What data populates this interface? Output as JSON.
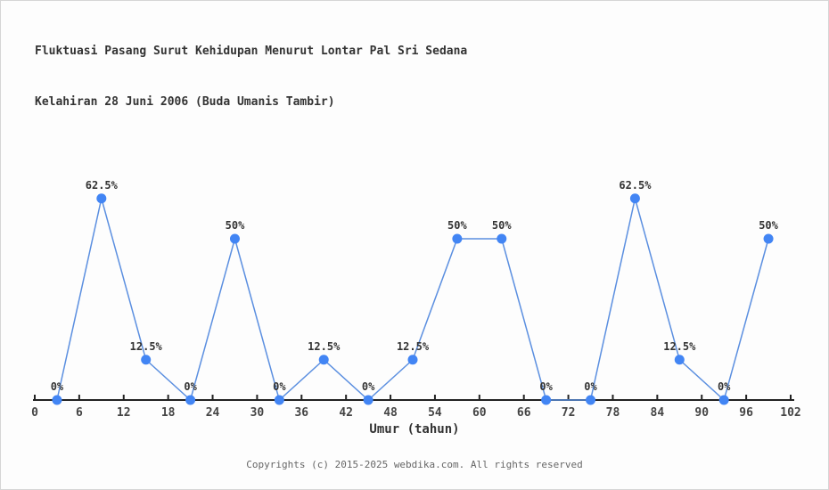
{
  "chart_data": {
    "type": "line",
    "title": "Fluktuasi Pasang Surut Kehidupan Menurut Lontar Pal Sri Sedana",
    "subtitle": "Kelahiran 28 Juni 2006 (Buda Umanis Tambir)",
    "xlabel": "Umur (tahun)",
    "x": [
      3,
      9,
      15,
      21,
      27,
      33,
      39,
      45,
      51,
      57,
      63,
      69,
      75,
      81,
      87,
      93,
      99
    ],
    "y": [
      0,
      62.5,
      12.5,
      0,
      50,
      0,
      12.5,
      0,
      12.5,
      50,
      50,
      0,
      0,
      62.5,
      12.5,
      0,
      50
    ],
    "point_labels": [
      "0%",
      "62.5%",
      "12.5%",
      "0%",
      "50%",
      "0%",
      "12.5%",
      "0%",
      "12.5%",
      "50%",
      "50%",
      "0%",
      "0%",
      "62.5%",
      "12.5%",
      "0%",
      "50%"
    ],
    "xticks": [
      0,
      6,
      12,
      18,
      24,
      30,
      36,
      42,
      48,
      54,
      60,
      66,
      72,
      78,
      84,
      90,
      96,
      102
    ],
    "xlim": [
      0,
      102
    ],
    "ylim": [
      0,
      100
    ],
    "grid": false,
    "legend": null,
    "colors": {
      "line": "#5b8fe0",
      "marker": "#4285f4",
      "axis": "#222222",
      "tick_label": "#444444",
      "point_label": "#333333"
    }
  },
  "footer": {
    "copyright": "Copyrights (c) 2015-2025 webdika.com. All rights reserved"
  }
}
